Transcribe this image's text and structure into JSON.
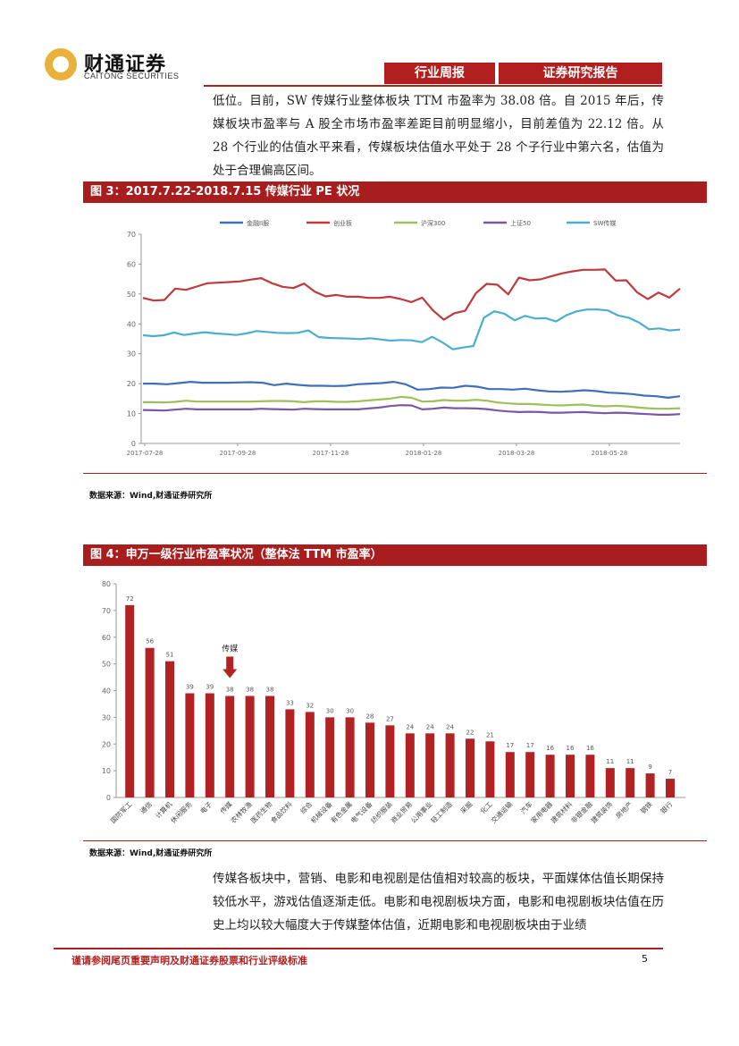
{
  "header": {
    "logo_cn": "财通证券",
    "logo_en": "CAITONG SECURITIES",
    "tab_weekly": "行业周报",
    "tab_report": "证券研究报告"
  },
  "paragraphs": {
    "top": "低位。目前，SW 传媒行业整体板块 TTM 市盈率为 38.08 倍。自 2015 年后，传媒板块市盈率与 A 股全市场市盈率差距目前明显缩小，目前差值为 22.12 倍。从 28 个行业的估值水平来看，传媒板块估值水平处于 28 个子行业中第六名，估值为处于合理偏高区间。",
    "bottom": "传媒各板块中，营销、电影和电视剧是估值相对较高的板块，平面媒体估值长期保持较低水平，游戏估值逐渐走低。电影和电视剧板块方面，电影和电视剧板块估值在历史上均以较大幅度大于传媒整体估值，近期电影和电视剧板块由于业绩"
  },
  "figures": {
    "fig3_title": "图 3：2017.7.22-2018.7.15 传媒行业 PE 状况",
    "fig4_title": "图 4：申万一级行业市盈率状况（整体法 TTM 市盈率）",
    "source": "数据来源：Wind,财通证券研究所"
  },
  "footer": {
    "disclaimer": "谨请参阅尾页重要声明及财通证券股票和行业评级标准",
    "page": "5"
  },
  "colors": {
    "brand_red": "#b21f1f",
    "bar_red": "#b22222",
    "s_finance": "#3f6fb8",
    "s_chinext": "#c0393b",
    "s_hs300": "#9cc05a",
    "s_sz50": "#7b57a6",
    "s_media": "#4baed0"
  },
  "chart_data": [
    {
      "type": "line",
      "x_ticks": [
        "2017-07-28",
        "2017-09-28",
        "2017-11-28",
        "2018-01-28",
        "2018-03-28",
        "2018-05-28"
      ],
      "ylim": [
        0,
        70
      ],
      "y_ticks": [
        0,
        10,
        20,
        30,
        40,
        50,
        60,
        70
      ],
      "legend_position": "top",
      "grid": false,
      "series": [
        {
          "name": "金融II服",
          "color": "#3f6fb8",
          "values": [
            20,
            20,
            19.8,
            20.2,
            20.6,
            20.3,
            20.3,
            20.3,
            20.4,
            20.5,
            20.3,
            19.5,
            20,
            19.6,
            19.3,
            19.3,
            19.2,
            19.3,
            19.8,
            20,
            20.2,
            20.6,
            19.8,
            18,
            18.2,
            18.7,
            18.6,
            19.3,
            19,
            18.2,
            18.2,
            18,
            18.3,
            17.8,
            17.4,
            17.3,
            17.5,
            17.8,
            17.5,
            17,
            16.8,
            16.5,
            16,
            15.8,
            15.3,
            15.8
          ]
        },
        {
          "name": "创业板",
          "color": "#c0393b",
          "values": [
            48.7,
            47.8,
            48,
            51.8,
            51.4,
            52.5,
            53.6,
            53.8,
            54,
            54.2,
            54.8,
            55.3,
            53.6,
            52.4,
            52,
            53.5,
            50.8,
            49.2,
            49.7,
            49.1,
            49.1,
            48.7,
            48.7,
            49.1,
            48.3,
            47.3,
            48.8,
            44.5,
            41.4,
            43.6,
            44.4,
            50.3,
            53.4,
            53.1,
            49.9,
            55.5,
            54.6,
            54.9,
            55.9,
            56.9,
            57.6,
            58.1,
            58.1,
            58.2,
            54.5,
            54.6,
            50.6,
            48.3,
            50.5,
            48.8,
            51.8
          ]
        },
        {
          "name": "沪深300",
          "color": "#9cc05a",
          "values": [
            13.8,
            13.8,
            13.7,
            13.9,
            14.3,
            14,
            14,
            14,
            14,
            14,
            14,
            14.1,
            14.2,
            14.2,
            14.1,
            13.8,
            14.1,
            14.1,
            13.9,
            13.9,
            14.1,
            14.4,
            14.7,
            15,
            15.6,
            15.3,
            14,
            14.1,
            14.5,
            14.3,
            14.3,
            14.6,
            14.3,
            13.7,
            13.4,
            13.2,
            13.2,
            13,
            12.8,
            12.7,
            12.9,
            13,
            12.6,
            12.4,
            12.6,
            12.4,
            12.1,
            11.8,
            11.6,
            11.6,
            11.8
          ]
        },
        {
          "name": "上证50",
          "color": "#7b57a6",
          "values": [
            11.2,
            11.1,
            11,
            11.3,
            11.6,
            11.4,
            11.4,
            11.4,
            11.4,
            11.4,
            11.4,
            11.6,
            11.5,
            11.4,
            11.3,
            11.6,
            11.5,
            11.4,
            11.4,
            11.4,
            11.4,
            11.7,
            12,
            12.5,
            12.8,
            12.7,
            11.4,
            11.6,
            12,
            11.8,
            11.8,
            11.7,
            11.5,
            11,
            10.7,
            10.5,
            10.6,
            10.5,
            10.3,
            10.3,
            10.4,
            10.5,
            10.3,
            10.1,
            10.3,
            10.2,
            10,
            9.8,
            9.6,
            9.6,
            9.8
          ]
        },
        {
          "name": "SW传媒",
          "color": "#4baed0",
          "values": [
            36.2,
            35.9,
            36.2,
            37.1,
            36.3,
            36.8,
            37.2,
            36.8,
            36.6,
            36.3,
            36.8,
            37.6,
            37.3,
            37,
            36.9,
            37,
            37.8,
            35.6,
            35.3,
            35.2,
            35.1,
            34.9,
            35.2,
            34.8,
            34.4,
            34.6,
            34.5,
            33.9,
            35.7,
            33.8,
            31.5,
            32.1,
            32.6,
            42,
            44.2,
            43.4,
            41.2,
            42.7,
            41.8,
            41.9,
            40.8,
            42.9,
            44.2,
            44.8,
            44.8,
            44.5,
            42.8,
            42.1,
            40.5,
            38.2,
            38.5,
            37.8,
            38.08
          ]
        }
      ]
    },
    {
      "type": "bar",
      "ylim": [
        0,
        80
      ],
      "y_ticks": [
        0,
        10,
        20,
        30,
        40,
        50,
        60,
        70,
        80
      ],
      "annotation": {
        "label": "传媒",
        "category": "传媒"
      },
      "categories": [
        "国防军工",
        "通信",
        "计算机",
        "休闲服务",
        "电子",
        "传媒",
        "农林牧渔",
        "医药生物",
        "食品饮料",
        "综合",
        "机械设备",
        "有色金属",
        "电气设备",
        "纺织服装",
        "商业贸易",
        "公用事业",
        "轻工制造",
        "采掘",
        "化工",
        "交通运输",
        "汽车",
        "家用电器",
        "建筑材料",
        "非银金融",
        "建筑装饰",
        "房地产",
        "钢铁",
        "银行"
      ],
      "values": [
        72,
        56,
        51,
        39,
        39,
        38,
        38,
        38,
        33,
        32,
        30,
        30,
        28,
        27,
        24,
        24,
        24,
        22,
        21,
        17,
        17,
        16,
        16,
        16,
        11,
        11,
        9,
        7
      ]
    }
  ]
}
